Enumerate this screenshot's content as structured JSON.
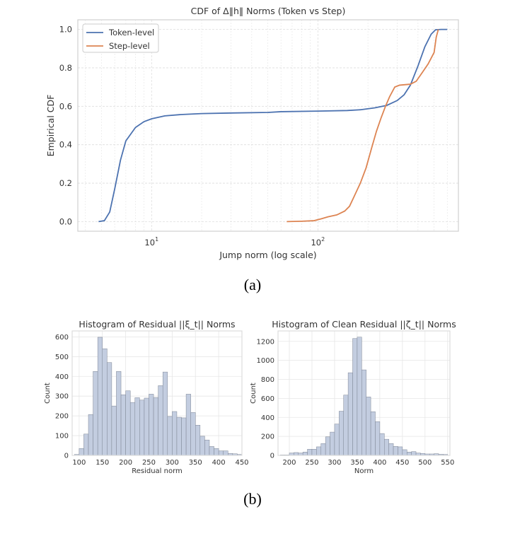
{
  "chart_data": [
    {
      "type": "line",
      "title": "CDF of Δ‖h‖ Norms (Token vs Step)",
      "xlabel": "Jump norm (log scale)",
      "ylabel": "Empirical CDF",
      "xscale": "log",
      "xlim": [
        3.6,
        700
      ],
      "ylim": [
        -0.05,
        1.05
      ],
      "xticks": [
        "10^1",
        "10^2"
      ],
      "yticks": [
        "0.0",
        "0.2",
        "0.4",
        "0.6",
        "0.8",
        "1.0"
      ],
      "grid": true,
      "legend": "top-left",
      "series": [
        {
          "name": "Token-level",
          "color": "#4c72b0",
          "x": [
            4.8,
            5.2,
            5.6,
            6.0,
            6.5,
            7,
            8,
            9,
            10,
            12,
            15,
            20,
            30,
            50,
            60,
            100,
            150,
            180,
            220,
            260,
            300,
            330,
            360,
            400,
            440,
            480,
            510,
            550,
            600
          ],
          "y": [
            0,
            0.005,
            0.05,
            0.17,
            0.32,
            0.42,
            0.49,
            0.52,
            0.535,
            0.55,
            0.557,
            0.562,
            0.565,
            0.568,
            0.572,
            0.575,
            0.578,
            0.582,
            0.592,
            0.605,
            0.63,
            0.66,
            0.71,
            0.81,
            0.91,
            0.975,
            0.998,
            1.0,
            1.0
          ]
        },
        {
          "name": "Step-level",
          "color": "#dd8452",
          "x": [
            65,
            80,
            95,
            105,
            115,
            130,
            145,
            155,
            165,
            180,
            195,
            210,
            225,
            240,
            255,
            270,
            290,
            310,
            360,
            390,
            420,
            460,
            500,
            515,
            530
          ],
          "y": [
            0,
            0.002,
            0.005,
            0.015,
            0.025,
            0.035,
            0.055,
            0.08,
            0.13,
            0.2,
            0.28,
            0.38,
            0.47,
            0.54,
            0.6,
            0.65,
            0.7,
            0.71,
            0.715,
            0.73,
            0.77,
            0.82,
            0.88,
            0.96,
            1.0
          ]
        }
      ]
    },
    {
      "type": "bar",
      "title": "Histogram of Residual ||ξ_t|| Norms",
      "xlabel": "Residual norm",
      "ylabel": "Count",
      "bin_start": 90,
      "bin_width": 10,
      "values": [
        5,
        35,
        108,
        207,
        425,
        598,
        540,
        470,
        250,
        425,
        307,
        327,
        268,
        292,
        280,
        290,
        310,
        293,
        353,
        422,
        197,
        222,
        193,
        190,
        310,
        217,
        153,
        97,
        78,
        45,
        35,
        23,
        23,
        10,
        8,
        5
      ],
      "xlim": [
        85,
        450
      ],
      "ylim": [
        0,
        630
      ],
      "xticks": [
        "100",
        "150",
        "200",
        "250",
        "300",
        "350",
        "400",
        "450"
      ],
      "yticks": [
        "0",
        "100",
        "200",
        "300",
        "400",
        "500",
        "600"
      ],
      "grid": true
    },
    {
      "type": "bar",
      "title": "Histogram of Clean Residual ||ζ_t|| Norms",
      "xlabel": "Norm",
      "ylabel": "Count",
      "bin_start": 180,
      "bin_width": 10,
      "values": [
        5,
        5,
        25,
        30,
        25,
        35,
        65,
        65,
        90,
        125,
        195,
        245,
        330,
        465,
        635,
        870,
        1230,
        1245,
        900,
        615,
        460,
        355,
        230,
        170,
        125,
        95,
        90,
        60,
        35,
        40,
        25,
        20,
        15,
        15,
        18,
        12,
        10
      ],
      "xlim": [
        175,
        555
      ],
      "ylim": [
        0,
        1310
      ],
      "xticks": [
        "200",
        "250",
        "300",
        "350",
        "400",
        "450",
        "500",
        "550"
      ],
      "yticks": [
        "0",
        "200",
        "400",
        "600",
        "800",
        "1000",
        "1200"
      ],
      "grid": true
    }
  ],
  "captions": {
    "a": "(a)",
    "b": "(b)"
  }
}
